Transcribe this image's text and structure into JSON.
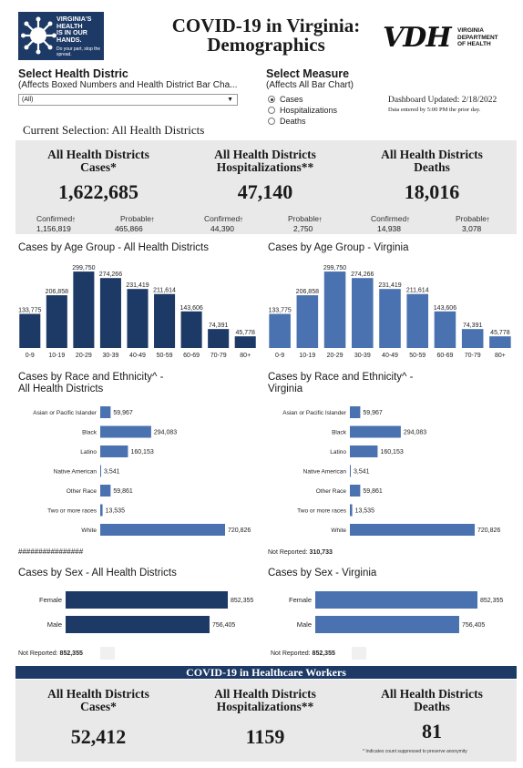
{
  "header": {
    "logo_lines": [
      "VIRGINIA'S",
      "HEALTH",
      "IS IN OUR",
      "HANDS."
    ],
    "logo_tagline": "Do your part, stop the spread.",
    "title_line1": "COVID-19 in Virginia:",
    "title_line2": "Demographics",
    "vdh_letters": "VDH",
    "vdh_dept_lines": [
      "VIRGINIA",
      "DEPARTMENT",
      "OF HEALTH"
    ]
  },
  "controls": {
    "district_title": "Select Health Distric",
    "district_sub": "(Affects Boxed Numbers and Health District Bar Cha...",
    "district_value": "(All)",
    "measure_title": "Select Measure",
    "measure_sub": "(Affects All Bar Chart)",
    "measures": [
      {
        "label": "Cases",
        "selected": true
      },
      {
        "label": "Hospitalizations",
        "selected": false
      },
      {
        "label": "Deaths",
        "selected": false
      }
    ],
    "updated": "Dashboard Updated: 2/18/2022",
    "updated_sub": "Data entered by 5:00 PM the prior day.",
    "current_selection": "Current Selection: All Health Districts"
  },
  "stats": [
    {
      "title1": "All Health Districts",
      "title2": "Cases*",
      "value": "1,622,685",
      "sub": [
        {
          "label": "Confirmed",
          "mark": "†",
          "value": "1,156,819"
        },
        {
          "label": "Probable",
          "mark": "†",
          "value": "465,866"
        }
      ]
    },
    {
      "title1": "All Health Districts",
      "title2": "Hospitalizations**",
      "value": "47,140",
      "sub": [
        {
          "label": "Confirmed",
          "mark": "†",
          "value": "44,390"
        },
        {
          "label": "Probable",
          "mark": "†",
          "value": "2,750"
        }
      ]
    },
    {
      "title1": "All Health Districts",
      "title2": "Deaths",
      "value": "18,016",
      "sub": [
        {
          "label": "Confirmed",
          "mark": "†",
          "value": "14,938"
        },
        {
          "label": "Probable",
          "mark": "†",
          "value": "3,078"
        }
      ]
    }
  ],
  "chart_titles": {
    "age_district": "Cases by Age Group - All Health Districts",
    "age_va": "Cases by Age Group - Virginia",
    "race_district_1": "Cases by Race and Ethnicity^ -",
    "race_district_2": "All Health Districts",
    "race_va_1": "Cases by Race and Ethnicity^ -",
    "race_va_2": "Virginia",
    "sex_district": "Cases by Sex - All Health Districts",
    "sex_va": "Cases by Sex - Virginia"
  },
  "race_district_note": "################",
  "race_va_not_reported": {
    "label": "Not Reported:",
    "value": "310,733"
  },
  "sex_district_not_reported": {
    "label": "Not Reported:",
    "value": "852,355"
  },
  "sex_va_not_reported": {
    "label": "Not Reported:",
    "value": "852,355"
  },
  "colors": {
    "district": "#1d3a66",
    "virginia": "#4a72b0",
    "panel": "#e9e9e9"
  },
  "chart_data": [
    {
      "id": "age_district",
      "type": "bar",
      "title": "Cases by Age Group - All Health Districts",
      "categories": [
        "0-9",
        "10-19",
        "20-29",
        "30-39",
        "40-49",
        "50-59",
        "60-69",
        "70-79",
        "80+"
      ],
      "values": [
        133775,
        206858,
        299750,
        274266,
        231419,
        211614,
        143606,
        74391,
        45778
      ],
      "labels": [
        "133,775",
        "206,858",
        "299,750",
        "274,266",
        "231,419",
        "211,614",
        "143,606",
        "74,391",
        "45,778"
      ],
      "color": "#1d3a66",
      "ylim": [
        0,
        300000
      ]
    },
    {
      "id": "age_va",
      "type": "bar",
      "title": "Cases by Age Group - Virginia",
      "categories": [
        "0-9",
        "10-19",
        "20-29",
        "30-39",
        "40-49",
        "50-59",
        "60-69",
        "70-79",
        "80+"
      ],
      "values": [
        133775,
        206858,
        299750,
        274266,
        231419,
        211614,
        143606,
        74391,
        45778
      ],
      "labels": [
        "133,775",
        "206,858",
        "299,750",
        "274,266",
        "231,419",
        "211,614",
        "143,606",
        "74,391",
        "45,778"
      ],
      "color": "#4a72b0",
      "ylim": [
        0,
        300000
      ]
    },
    {
      "id": "race_district",
      "type": "bar",
      "orientation": "horizontal",
      "categories": [
        "Asian or Pacific Islander",
        "Black",
        "Latino",
        "Native American",
        "Other Race",
        "Two or more races",
        "White"
      ],
      "values": [
        59967,
        294083,
        160153,
        3541,
        59861,
        13535,
        720826
      ],
      "labels": [
        "59,967",
        "294,083",
        "160,153",
        "3,541",
        "59,861",
        "13,535",
        "720,826"
      ],
      "color": "#4a72b0",
      "xlim": [
        0,
        720826
      ]
    },
    {
      "id": "race_va",
      "type": "bar",
      "orientation": "horizontal",
      "categories": [
        "Asian or Pacific Islander",
        "Black",
        "Latino",
        "Native American",
        "Other Race",
        "Two or more races",
        "White"
      ],
      "values": [
        59967,
        294083,
        160153,
        3541,
        59861,
        13535,
        720826
      ],
      "labels": [
        "59,967",
        "294,083",
        "160,153",
        "3,541",
        "59,861",
        "13,535",
        "720,826"
      ],
      "color": "#4a72b0",
      "xlim": [
        0,
        720826
      ]
    },
    {
      "id": "sex_district",
      "type": "bar",
      "orientation": "horizontal",
      "categories": [
        "Female",
        "Male"
      ],
      "values": [
        852355,
        756405
      ],
      "labels": [
        "852,355",
        "756,405"
      ],
      "color": "#1d3a66",
      "xlim": [
        0,
        852355
      ]
    },
    {
      "id": "sex_va",
      "type": "bar",
      "orientation": "horizontal",
      "categories": [
        "Female",
        "Male"
      ],
      "values": [
        852355,
        756405
      ],
      "labels": [
        "852,355",
        "756,405"
      ],
      "color": "#4a72b0",
      "xlim": [
        0,
        852355
      ]
    }
  ],
  "healthcare": {
    "band_title": "COVID-19 in Healthcare Workers",
    "stats": [
      {
        "title1": "All Health Districts",
        "title2": "Cases*",
        "value": "52,412"
      },
      {
        "title1": "All Health Districts",
        "title2": "Hospitalizations**",
        "value": "1159"
      },
      {
        "title1": "All Health Districts",
        "title2": "Deaths",
        "value": "81"
      }
    ],
    "footnote": "* Indicates count suppressed to preserve anonymity"
  }
}
